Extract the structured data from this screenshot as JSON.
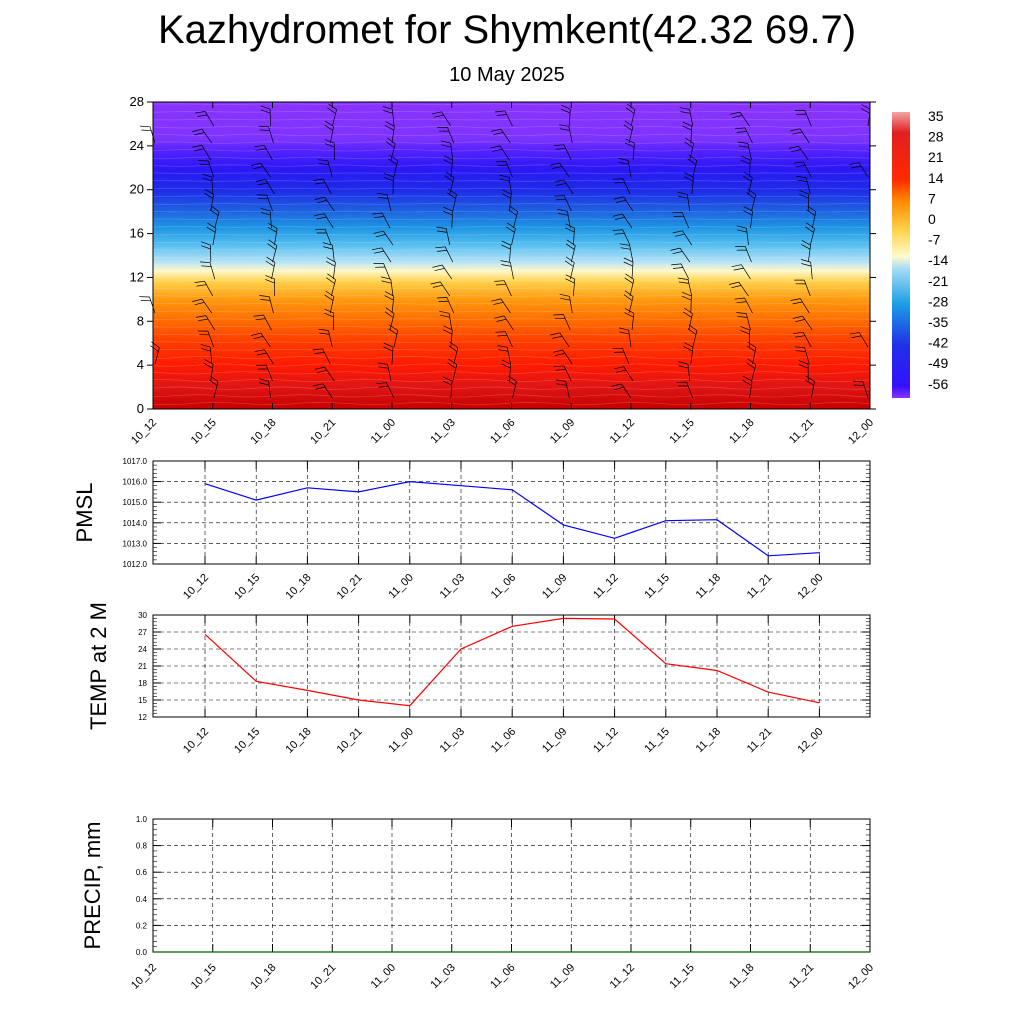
{
  "title": "Kazhydromet for Shymkent(42.32 69.7)",
  "subtitle": "10 May 2025",
  "chart_data": [
    {
      "type": "heatmap",
      "name": "temperature cross-section with wind barbs",
      "x_labels": [
        "10_12",
        "10_15",
        "10_18",
        "10_21",
        "11_00",
        "11_03",
        "11_06",
        "11_09",
        "11_12",
        "11_15",
        "11_18",
        "11_21",
        "12_00"
      ],
      "y_ticks": [
        0,
        4,
        8,
        12,
        16,
        20,
        24,
        28
      ],
      "ylim": [
        0,
        28
      ],
      "colorbar": {
        "labels": [
          "35",
          "28",
          "21",
          "14",
          "7",
          "0",
          "-7",
          "-14",
          "-21",
          "-28",
          "-35",
          "-42",
          "-49",
          "-56"
        ],
        "stops": [
          {
            "value": 37,
            "color": "#f4a4a4"
          },
          {
            "value": 30,
            "color": "#e02020"
          },
          {
            "value": 14,
            "color": "#ff2a00"
          },
          {
            "value": 7,
            "color": "#ff8800"
          },
          {
            "value": -3,
            "color": "#ffd24a"
          },
          {
            "value": -12,
            "color": "#fffbcc"
          },
          {
            "value": -16,
            "color": "#aadcf4"
          },
          {
            "value": -28,
            "color": "#1aa0e6"
          },
          {
            "value": -42,
            "color": "#2030e8"
          },
          {
            "value": -56,
            "color": "#3311ff"
          },
          {
            "value": -60,
            "color": "#8a33ff"
          }
        ]
      },
      "vertical_profile": [
        {
          "y": 0,
          "color": "#c80000"
        },
        {
          "y": 2,
          "color": "#e01515"
        },
        {
          "y": 4,
          "color": "#ff1a00"
        },
        {
          "y": 6,
          "color": "#ff3a00"
        },
        {
          "y": 8,
          "color": "#ff6a00"
        },
        {
          "y": 10,
          "color": "#ff9a10"
        },
        {
          "y": 11.6,
          "color": "#ffd04a"
        },
        {
          "y": 12.6,
          "color": "#fff8c8"
        },
        {
          "y": 13.4,
          "color": "#b8e4f6"
        },
        {
          "y": 15,
          "color": "#55bef0"
        },
        {
          "y": 16.5,
          "color": "#1e96e4"
        },
        {
          "y": 18,
          "color": "#1e64e0"
        },
        {
          "y": 20,
          "color": "#1e2ae8"
        },
        {
          "y": 22,
          "color": "#2c18f6"
        },
        {
          "y": 23.6,
          "color": "#5522ff"
        },
        {
          "y": 24.6,
          "color": "#7d33ff"
        },
        {
          "y": 28,
          "color": "#8a33ff"
        }
      ]
    },
    {
      "type": "line",
      "ylabel": "PMSL",
      "categories": [
        "10_12",
        "10_15",
        "10_18",
        "10_21",
        "11_00",
        "11_03",
        "11_06",
        "11_09",
        "11_12",
        "11_15",
        "11_18",
        "11_21",
        "12_00"
      ],
      "ylim": [
        1012.0,
        1017.0
      ],
      "y_ticks": [
        "1012.0",
        "1013.0",
        "1014.0",
        "1015.0",
        "1016.0",
        "1017.0"
      ],
      "series": [
        {
          "color": "#0000ff",
          "values": [
            1015.9,
            1015.1,
            1015.7,
            1015.5,
            1016.0,
            1015.8,
            1015.6,
            1013.9,
            1013.25,
            1014.1,
            1014.15,
            1012.4,
            1012.55
          ]
        }
      ]
    },
    {
      "type": "line",
      "ylabel": "TEMP at 2 M",
      "categories": [
        "10_12",
        "10_15",
        "10_18",
        "10_21",
        "11_00",
        "11_03",
        "11_06",
        "11_09",
        "11_12",
        "11_15",
        "11_18",
        "11_21",
        "12_00"
      ],
      "ylim": [
        12,
        30
      ],
      "y_ticks": [
        "12",
        "15",
        "18",
        "21",
        "24",
        "27",
        "30"
      ],
      "series": [
        {
          "color": "#ff0000",
          "values": [
            26.6,
            18.3,
            16.7,
            15.0,
            14.0,
            24.0,
            28.0,
            29.4,
            29.3,
            21.4,
            20.2,
            16.4,
            14.5
          ]
        }
      ]
    },
    {
      "type": "line",
      "ylabel": "PRECIP, mm",
      "categories": [
        "10_12",
        "10_15",
        "10_18",
        "10_21",
        "11_00",
        "11_03",
        "11_06",
        "11_09",
        "11_12",
        "11_15",
        "11_18",
        "11_21",
        "12_00"
      ],
      "ylim": [
        0.0,
        1.0
      ],
      "y_ticks": [
        "0.0",
        "0.2",
        "0.4",
        "0.6",
        "0.8",
        "1.0"
      ],
      "series": [
        {
          "color": "#006400",
          "values": [
            0,
            0,
            0,
            0,
            0,
            0,
            0,
            0,
            0,
            0,
            0,
            0,
            0
          ]
        }
      ]
    }
  ]
}
